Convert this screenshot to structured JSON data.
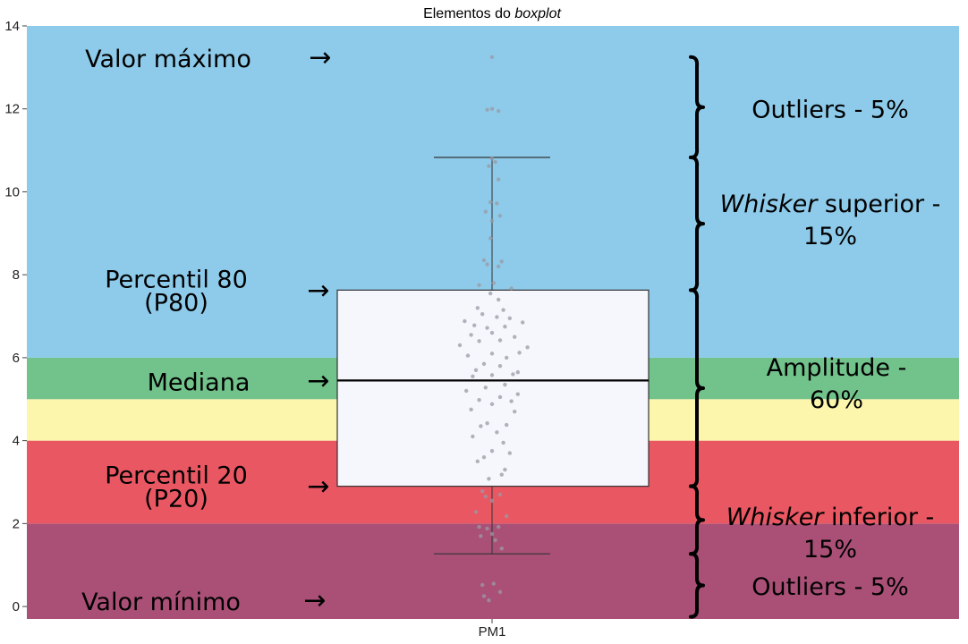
{
  "chart_data": {
    "type": "boxplot",
    "title": {
      "prefix": "Elementos do ",
      "emphasis": "boxplot"
    },
    "x_category": "PM1",
    "ylim": [
      -0.3,
      14
    ],
    "y_ticks": [
      0,
      2,
      4,
      6,
      8,
      10,
      12,
      14
    ],
    "background_bands": [
      {
        "from": -0.3,
        "to": 2,
        "color": "#aa5077"
      },
      {
        "from": 2,
        "to": 4,
        "color": "#e95763"
      },
      {
        "from": 4,
        "to": 5,
        "color": "#fbf6ab"
      },
      {
        "from": 5,
        "to": 6,
        "color": "#71c28b"
      },
      {
        "from": 6,
        "to": 14,
        "color": "#8ecbea"
      }
    ],
    "box": {
      "whisker_low": 1.27,
      "q_low": 2.9,
      "median": 5.45,
      "q_high": 7.63,
      "whisker_high": 10.83,
      "fill": "#f6f6fd",
      "stroke": "#333333"
    },
    "points": [
      {
        "x": -0.02,
        "y": 0.15
      },
      {
        "x": 0.05,
        "y": 0.35
      },
      {
        "x": -0.06,
        "y": 0.52
      },
      {
        "x": 0.01,
        "y": 0.55
      },
      {
        "x": -0.05,
        "y": 0.25
      },
      {
        "x": 0.06,
        "y": 1.4
      },
      {
        "x": -0.07,
        "y": 1.7
      },
      {
        "x": -0.03,
        "y": 1.88
      },
      {
        "x": 0.04,
        "y": 1.92
      },
      {
        "x": -0.08,
        "y": 1.92
      },
      {
        "x": 0.09,
        "y": 2.18
      },
      {
        "x": -0.1,
        "y": 2.28
      },
      {
        "x": 0.0,
        "y": 2.55
      },
      {
        "x": 0.05,
        "y": 2.7
      },
      {
        "x": -0.04,
        "y": 2.65
      },
      {
        "x": -0.06,
        "y": 2.78
      },
      {
        "x": 0.08,
        "y": 3.3
      },
      {
        "x": -0.02,
        "y": 3.08
      },
      {
        "x": 0.02,
        "y": 1.6
      },
      {
        "x": 0.0,
        "y": 1.75
      },
      {
        "x": 0.06,
        "y": 3.18
      },
      {
        "x": -0.09,
        "y": 3.5
      },
      {
        "x": 0.0,
        "y": 3.75
      },
      {
        "x": 0.11,
        "y": 3.7
      },
      {
        "x": -0.05,
        "y": 3.6
      },
      {
        "x": 0.07,
        "y": 3.95
      },
      {
        "x": -0.12,
        "y": 4.1
      },
      {
        "x": 0.03,
        "y": 4.2
      },
      {
        "x": -0.07,
        "y": 4.35
      },
      {
        "x": 0.09,
        "y": 4.38
      },
      {
        "x": -0.03,
        "y": 4.42
      },
      {
        "x": 0.14,
        "y": 4.7
      },
      {
        "x": -0.13,
        "y": 4.75
      },
      {
        "x": 0.0,
        "y": 4.88
      },
      {
        "x": 0.12,
        "y": 4.95
      },
      {
        "x": -0.08,
        "y": 4.98
      },
      {
        "x": 0.05,
        "y": 5.05
      },
      {
        "x": -0.16,
        "y": 5.2
      },
      {
        "x": 0.16,
        "y": 5.12
      },
      {
        "x": -0.04,
        "y": 5.28
      },
      {
        "x": 0.08,
        "y": 5.35
      },
      {
        "x": -0.12,
        "y": 5.55
      },
      {
        "x": 0.0,
        "y": 5.58
      },
      {
        "x": 0.13,
        "y": 5.6
      },
      {
        "x": -0.1,
        "y": 5.7
      },
      {
        "x": 0.16,
        "y": 5.65
      },
      {
        "x": 0.05,
        "y": 5.8
      },
      {
        "x": -0.05,
        "y": 5.85
      },
      {
        "x": 0.09,
        "y": 6.0
      },
      {
        "x": -0.15,
        "y": 6.05
      },
      {
        "x": 0.0,
        "y": 6.1
      },
      {
        "x": 0.17,
        "y": 6.12
      },
      {
        "x": -0.2,
        "y": 6.3
      },
      {
        "x": 0.22,
        "y": 6.25
      },
      {
        "x": -0.08,
        "y": 6.4
      },
      {
        "x": 0.05,
        "y": 6.42
      },
      {
        "x": -0.13,
        "y": 6.55
      },
      {
        "x": 0.14,
        "y": 6.5
      },
      {
        "x": 0.0,
        "y": 6.6
      },
      {
        "x": -0.03,
        "y": 6.72
      },
      {
        "x": 0.08,
        "y": 6.75
      },
      {
        "x": -0.11,
        "y": 6.78
      },
      {
        "x": 0.19,
        "y": 6.85
      },
      {
        "x": -0.17,
        "y": 6.88
      },
      {
        "x": 0.11,
        "y": 6.95
      },
      {
        "x": -0.06,
        "y": 7.05
      },
      {
        "x": 0.03,
        "y": 6.98
      },
      {
        "x": -0.09,
        "y": 7.2
      },
      {
        "x": 0.07,
        "y": 7.15
      },
      {
        "x": 0.04,
        "y": 7.4
      },
      {
        "x": -0.01,
        "y": 7.55
      },
      {
        "x": 0.12,
        "y": 7.67
      },
      {
        "x": 0.01,
        "y": 7.8
      },
      {
        "x": -0.08,
        "y": 7.75
      },
      {
        "x": 0.04,
        "y": 8.2
      },
      {
        "x": -0.05,
        "y": 8.35
      },
      {
        "x": 0.06,
        "y": 8.32
      },
      {
        "x": -0.03,
        "y": 8.25
      },
      {
        "x": -0.01,
        "y": 8.88
      },
      {
        "x": 0.0,
        "y": 9.3
      },
      {
        "x": 0.05,
        "y": 9.42
      },
      {
        "x": -0.04,
        "y": 9.52
      },
      {
        "x": -0.01,
        "y": 9.75
      },
      {
        "x": 0.03,
        "y": 9.72
      },
      {
        "x": 0.04,
        "y": 10.3
      },
      {
        "x": -0.02,
        "y": 10.62
      },
      {
        "x": 0.0,
        "y": 10.8
      },
      {
        "x": 0.02,
        "y": 10.72
      },
      {
        "x": -0.03,
        "y": 11.98
      },
      {
        "x": 0.0,
        "y": 12.0
      },
      {
        "x": 0.04,
        "y": 11.95
      },
      {
        "x": 0.0,
        "y": 13.25
      }
    ],
    "point_color": "#9a9aa6",
    "left_annotations": [
      {
        "lines": [
          "Valor máximo"
        ],
        "y": 13.25
      },
      {
        "lines": [
          "Percentil 80",
          "(P80)"
        ],
        "y": 7.63
      },
      {
        "lines": [
          "Mediana"
        ],
        "y": 5.45
      },
      {
        "lines": [
          "Percentil 20",
          "(P20)"
        ],
        "y": 2.9
      },
      {
        "lines": [
          "Valor mínimo"
        ],
        "y": 0.15
      }
    ],
    "arrow_glyph": "→",
    "right_brackets": [
      {
        "from": 10.83,
        "to": 13.25
      },
      {
        "from": 7.63,
        "to": 10.83
      },
      {
        "from": 2.9,
        "to": 7.63
      },
      {
        "from": 1.27,
        "to": 2.9
      },
      {
        "from": -0.25,
        "to": 1.27
      }
    ],
    "right_annotations": [
      {
        "lines": [
          [
            {
              "t": "Outliers - 5%",
              "em": false
            }
          ]
        ],
        "y": 12.0
      },
      {
        "lines": [
          [
            {
              "t": "Whisker",
              "em": true
            },
            {
              "t": " superior -",
              "em": false
            }
          ],
          [
            {
              "t": "15%",
              "em": false
            }
          ]
        ],
        "y": 9.45
      },
      {
        "lines": [
          [
            {
              "t": "Amplitude -",
              "em": false
            }
          ],
          [
            {
              "t": "60%",
              "em": false
            }
          ]
        ],
        "y": 5.5
      },
      {
        "lines": [
          [
            {
              "t": "Whisker",
              "em": true
            },
            {
              "t": " inferior -",
              "em": false
            }
          ],
          [
            {
              "t": "15%",
              "em": false
            }
          ]
        ],
        "y": 1.9
      },
      {
        "lines": [
          [
            {
              "t": "Outliers - 5%",
              "em": false
            }
          ]
        ],
        "y": 0.5
      }
    ]
  }
}
